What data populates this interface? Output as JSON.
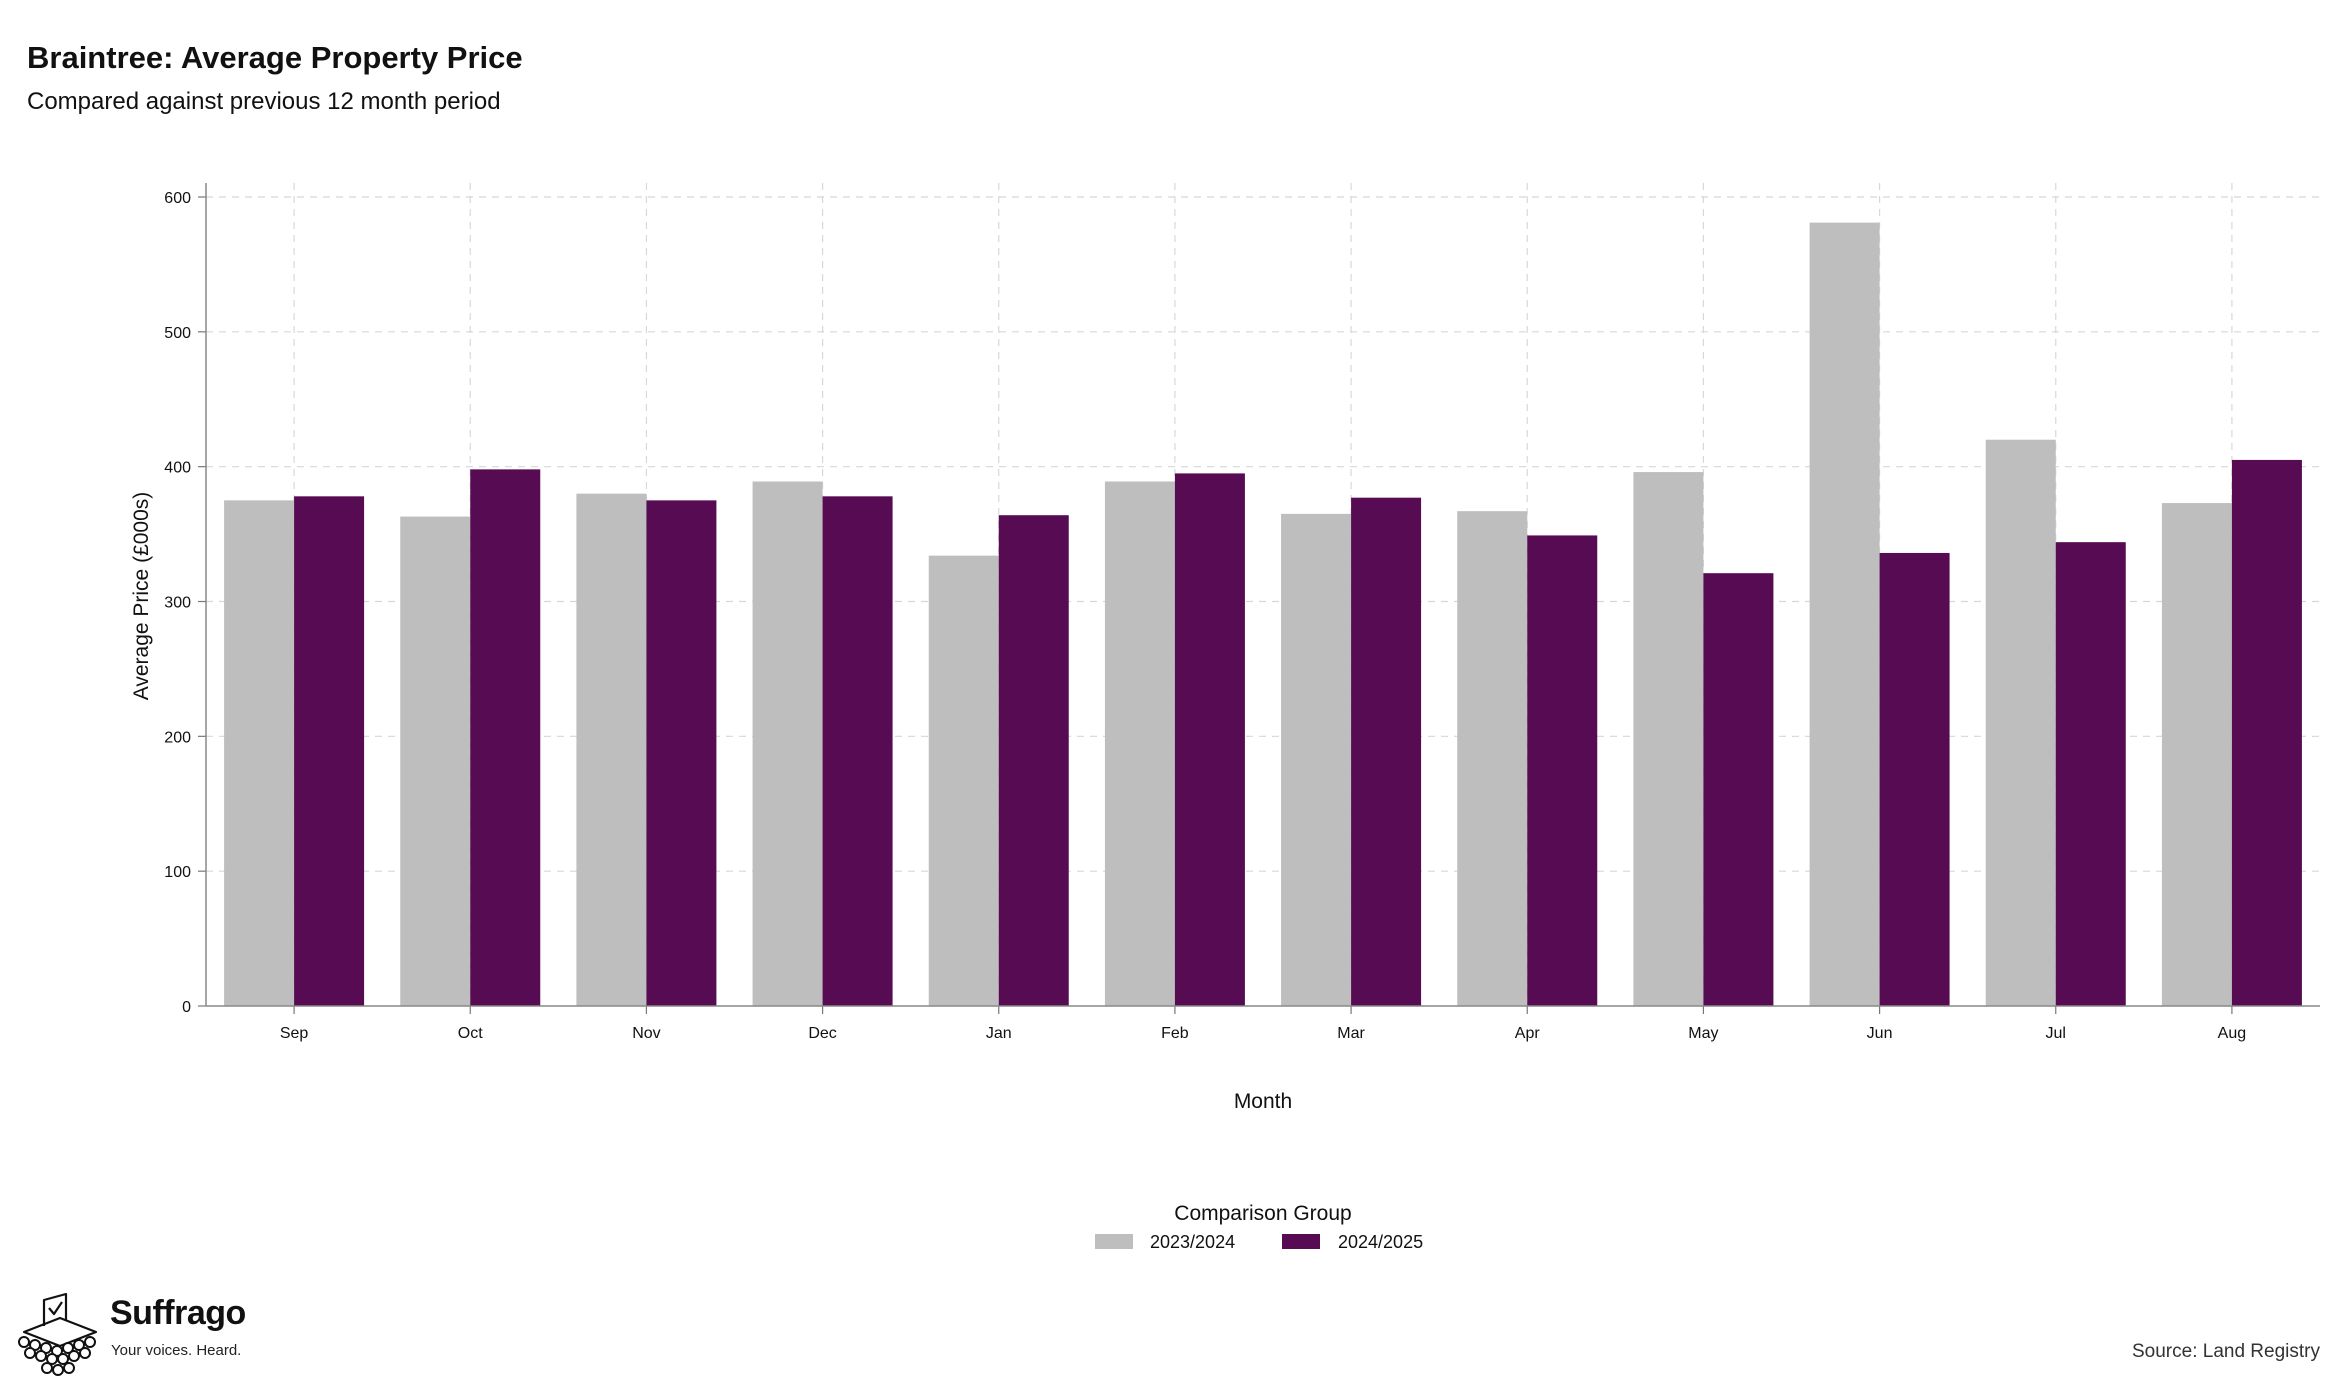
{
  "header": {
    "title": "Braintree: Average Property Price",
    "subtitle": "Compared against previous 12 month period"
  },
  "chart_data": {
    "type": "bar",
    "title": "Braintree: Average Property Price",
    "subtitle": "Compared against previous 12 month period",
    "xlabel": "Month",
    "ylabel": "Average Price (£000s)",
    "ylim": [
      0,
      600
    ],
    "yticks": [
      0,
      100,
      200,
      300,
      400,
      500,
      600
    ],
    "grid": true,
    "legend_position": "bottom",
    "legend_title": "Comparison Group",
    "categories": [
      "Sep",
      "Oct",
      "Nov",
      "Dec",
      "Jan",
      "Feb",
      "Mar",
      "Apr",
      "May",
      "Jun",
      "Jul",
      "Aug"
    ],
    "series": [
      {
        "name": "2023/2024",
        "color": "#bebebe",
        "values": [
          375,
          363,
          380,
          389,
          334,
          389,
          365,
          367,
          396,
          581,
          420,
          373
        ]
      },
      {
        "name": "2024/2025",
        "color": "#560b52",
        "values": [
          378,
          398,
          375,
          378,
          364,
          395,
          377,
          349,
          321,
          336,
          344,
          405
        ]
      }
    ]
  },
  "branding": {
    "name": "Suffrago",
    "tagline": "Your voices. Heard.",
    "logo_icon": "ballot-box-icon"
  },
  "footer": {
    "source": "Source: Land Registry"
  }
}
